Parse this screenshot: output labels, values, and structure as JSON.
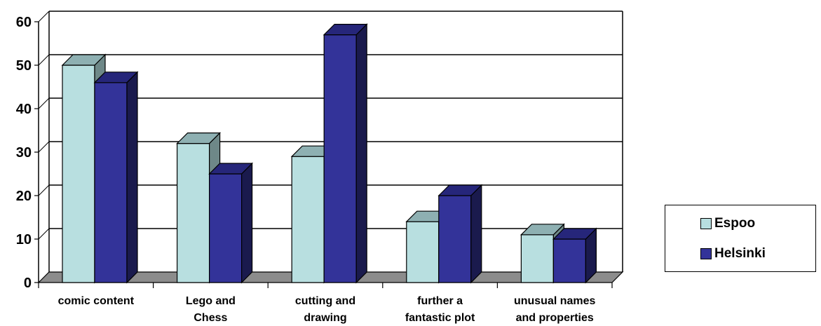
{
  "chart_data": {
    "type": "bar",
    "title": "",
    "xlabel": "",
    "ylabel": "",
    "ylim": [
      0,
      60
    ],
    "yticks": [
      0,
      10,
      20,
      30,
      40,
      50,
      60
    ],
    "categories": [
      [
        "comic content"
      ],
      [
        "Lego and",
        "Chess"
      ],
      [
        "cutting and",
        "drawing"
      ],
      [
        "further a",
        "fantastic plot"
      ],
      [
        "unusual names",
        "and properties"
      ]
    ],
    "series": [
      {
        "name": "Espoo",
        "values": [
          50,
          32,
          29,
          14,
          11
        ]
      },
      {
        "name": "Helsinki",
        "values": [
          46,
          25,
          57,
          20,
          10
        ]
      }
    ],
    "grid": true,
    "legend": "right",
    "colors": {
      "Espoo_front": "#b8dfe0",
      "Espoo_side": "#6e8888",
      "Espoo_top": "#8eb0b2",
      "Helsinki_front": "#333399",
      "Helsinki_side": "#1a1a4d",
      "Helsinki_top": "#26267a",
      "floor": "#8c8c8c"
    }
  }
}
